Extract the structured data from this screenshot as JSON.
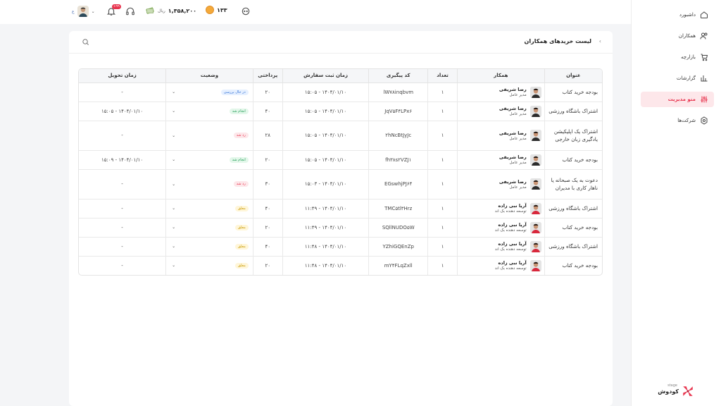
{
  "sidebar": {
    "items": [
      {
        "label": "داشبورد",
        "icon": "home-icon",
        "active": false
      },
      {
        "label": "همکاران",
        "icon": "users-icon",
        "active": false
      },
      {
        "label": "بازارچه",
        "icon": "cart-icon",
        "active": false
      },
      {
        "label": "گزارشات",
        "icon": "chart-icon",
        "active": false
      },
      {
        "label": "منو مدیریت",
        "icon": "sliders-icon",
        "active": true
      },
      {
        "label": "شرکت‌ها",
        "icon": "gear-icon",
        "active": false
      }
    ],
    "brand": {
      "name": "کودوش",
      "sub": "stage"
    }
  },
  "topbar": {
    "points": "۱۳۳",
    "balance": "۱,۳۵۸,۲۰۰",
    "currency": "ریال",
    "notif_count": "۹۹+",
    "user_initial": "ع"
  },
  "card": {
    "title": "لیست خریدهای همکاران"
  },
  "table": {
    "headers": [
      "عنوان",
      "همکار",
      "تعداد",
      "کد پیگیری",
      "زمان ثبت سفارش",
      "پرداختی",
      "وضعیت",
      "زمان تحویل"
    ],
    "rows": [
      {
        "title": "بودجه خرید کتاب",
        "name": "رضا شریفی",
        "role": "مدیر عامل",
        "count": "۱",
        "code": "lW۷۸inqbvm",
        "time": "۱۴۰۴/۰۱/۱۰ - ۱۵:۰۵",
        "paid": "۲۰",
        "status": "در حال بررسی",
        "status_type": "review",
        "delivery": "-"
      },
      {
        "title": "اشتراک باشگاه ورزشی",
        "name": "رضا شریفی",
        "role": "مدیر عامل",
        "count": "۱",
        "code": "JqV۵F۴LPx۶",
        "time": "۱۴۰۴/۰۱/۱۰ - ۱۵:۰۵",
        "paid": "۴۰",
        "status": "انجام شد",
        "status_type": "done",
        "delivery": "۱۴۰۴/۰۱/۱۰ - ۱۵:۰۵"
      },
      {
        "title": "اشتراک یک اپلیکیشن یادگیری زبان خارجی",
        "name": "رضا شریفی",
        "role": "مدیر عامل",
        "count": "۱",
        "code": "۲hNcBtJyJc",
        "time": "۱۴۰۴/۰۱/۱۰ - ۱۵:۰۵",
        "paid": "۲۸",
        "status": "رد شد",
        "status_type": "rejected",
        "delivery": "-"
      },
      {
        "title": "بودجه خرید کتاب",
        "name": "رضا شریفی",
        "role": "مدیر عامل",
        "count": "۱",
        "code": "fh۳۸s۲VZJ۱",
        "time": "۱۴۰۴/۰۱/۱۰ - ۱۵:۰۵",
        "paid": "۲۰",
        "status": "انجام شد",
        "status_type": "done",
        "delivery": "۱۴۰۴/۰۱/۱۰ - ۱۵:۰۹"
      },
      {
        "title": "دعوت به یک صبحانه یا ناهار کاری با مدیران",
        "name": "رضا شریفی",
        "role": "مدیر عامل",
        "count": "۱",
        "code": "EGswhjPJ۶۴",
        "time": "۱۴۰۴/۰۱/۱۰ - ۱۵:۰۳",
        "paid": "۳۰",
        "status": "رد شد",
        "status_type": "rejected",
        "delivery": "-"
      },
      {
        "title": "اشتراک باشگاه ورزشی",
        "name": "آریا نبی زاده",
        "role": "توسعه دهنده بک اند",
        "count": "۱",
        "code": "TMC۵tl۳Hrz",
        "time": "۱۴۰۴/۰۱/۱۰ - ۱۱:۴۹",
        "paid": "۴۰",
        "status": "معلق",
        "status_type": "pending",
        "delivery": "-"
      },
      {
        "title": "بودجه خرید کتاب",
        "name": "آریا نبی زاده",
        "role": "توسعه دهنده بک اند",
        "count": "۱",
        "code": "SQllNUDO۵W",
        "time": "۱۴۰۴/۰۱/۱۰ - ۱۱:۴۹",
        "paid": "۲۰",
        "status": "معلق",
        "status_type": "pending",
        "delivery": "-"
      },
      {
        "title": "اشتراک باشگاه ورزشی",
        "name": "آریا نبی زاده",
        "role": "توسعه دهنده بک اند",
        "count": "۱",
        "code": "YZhiGQEnZp",
        "time": "۱۴۰۴/۰۱/۱۰ - ۱۱:۴۸",
        "paid": "۴۰",
        "status": "معلق",
        "status_type": "pending",
        "delivery": "-"
      },
      {
        "title": "بودجه خرید کتاب",
        "name": "آریا نبی زاده",
        "role": "توسعه دهنده بک اند",
        "count": "۱",
        "code": "mY۴FLqZxll",
        "time": "۱۴۰۴/۰۱/۱۰ - ۱۱:۴۸",
        "paid": "۲۰",
        "status": "معلق",
        "status_type": "pending",
        "delivery": "-"
      }
    ]
  }
}
